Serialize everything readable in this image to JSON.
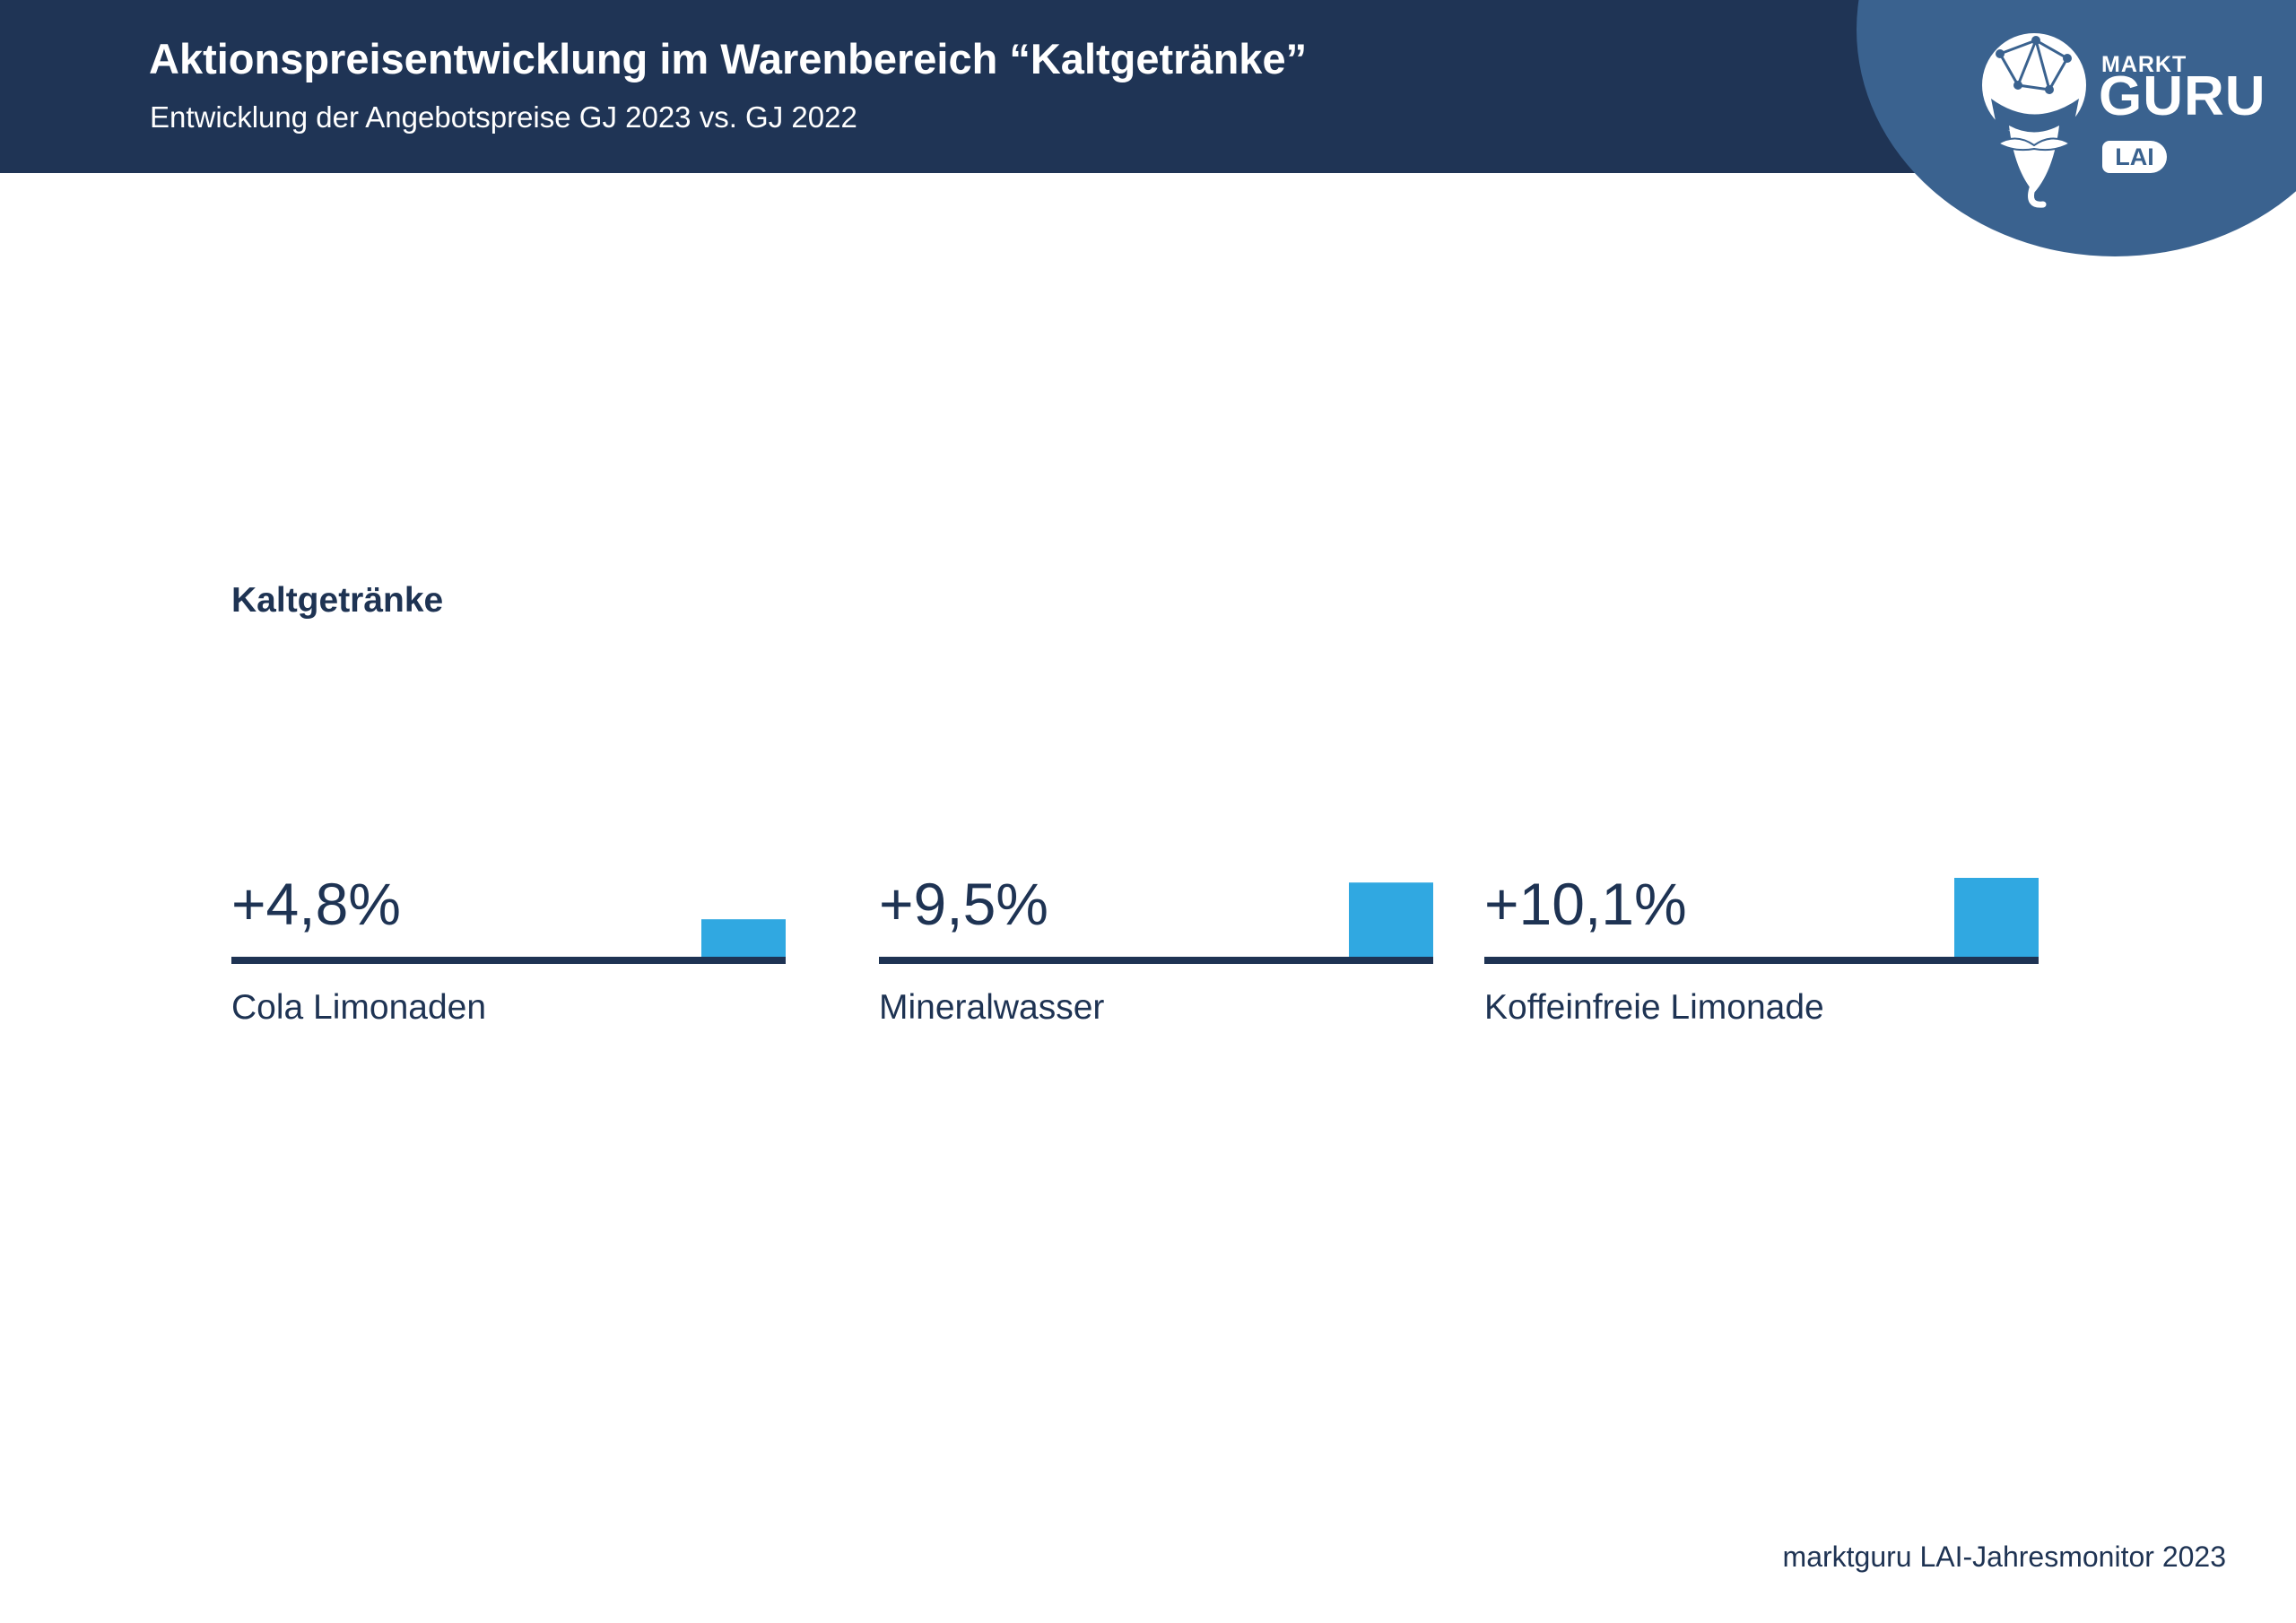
{
  "header": {
    "title": "Aktionspreisentwicklung im Warenbereich “Kaltgetränke”",
    "subtitle": "Entwicklung der Angebotspreise GJ 2023 vs. GJ 2022"
  },
  "logo": {
    "markt": "MARKT",
    "guru": "GURU",
    "lai": "LAI"
  },
  "colors": {
    "header_bg": "#1f3455",
    "logo_bg": "#3a628f",
    "bar": "#30a8e1",
    "baseline": "#1e3353",
    "text": "#1e3353"
  },
  "chart_data": {
    "type": "bar",
    "title": "Kaltgetränke",
    "categories": [
      "Cola Limonaden",
      "Mineralwasser",
      "Koffeinfreie Limonade"
    ],
    "values": [
      4.8,
      9.5,
      10.1
    ],
    "value_labels": [
      "+4,8%",
      "+9,5%",
      "+10,1%"
    ],
    "unit": "%",
    "ylim": [
      0,
      10.1
    ],
    "grid": false,
    "legend": "none"
  },
  "footer": {
    "source": "marktguru LAI-Jahresmonitor 2023"
  }
}
